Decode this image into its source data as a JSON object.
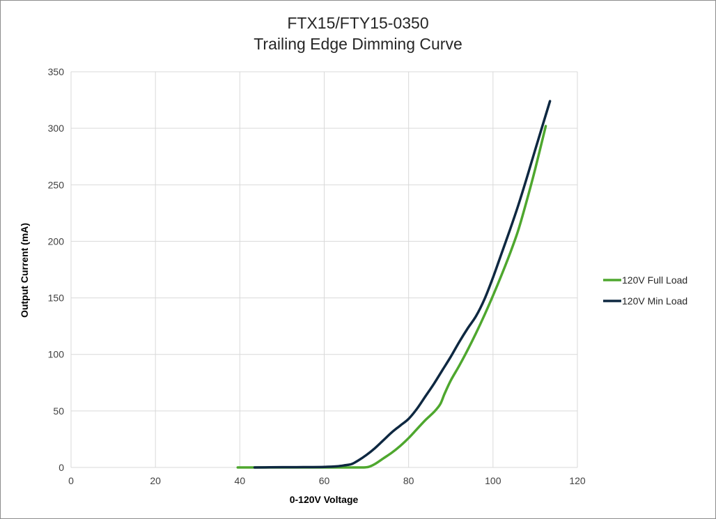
{
  "chart_data": {
    "type": "line",
    "title": "FTX15/FTY15-0350",
    "subtitle": "Trailing Edge Dimming Curve",
    "xlabel": "0-120V Voltage",
    "ylabel": "Output Current (mA)",
    "xlim": [
      0,
      120
    ],
    "ylim": [
      0,
      350
    ],
    "xticks": [
      0,
      20,
      40,
      60,
      80,
      100,
      120
    ],
    "yticks": [
      0,
      50,
      100,
      150,
      200,
      250,
      300,
      350
    ],
    "grid": true,
    "legend_position": "right",
    "series": [
      {
        "name": "120V Full Load",
        "color": "#4ea72e",
        "x": [
          39.5,
          45,
          55,
          62,
          66,
          69,
          70.5,
          72,
          74,
          76,
          78,
          80,
          82,
          84,
          86,
          87.5,
          88.5,
          90,
          92,
          94,
          96,
          98,
          100,
          102,
          104,
          106,
          108,
          110,
          112.5
        ],
        "y": [
          0,
          0,
          0,
          0,
          0,
          0,
          0.5,
          3,
          8,
          13,
          19,
          26,
          34,
          42,
          49,
          56,
          65,
          77,
          90,
          104,
          119,
          135,
          152,
          170,
          189,
          210,
          236,
          264,
          302
        ]
      },
      {
        "name": "120V Min Load",
        "color": "#0e2841",
        "x": [
          43.5,
          50,
          55,
          60,
          63,
          65,
          66.5,
          68,
          70,
          72,
          74,
          76,
          78,
          80,
          82,
          84,
          86,
          88,
          90,
          92,
          94,
          96,
          98,
          100,
          102,
          104,
          106,
          108,
          110,
          113.5
        ],
        "y": [
          0,
          0.2,
          0.3,
          0.5,
          1,
          2,
          3,
          6,
          11,
          17,
          24,
          31,
          37,
          43,
          52,
          63,
          74,
          86,
          98,
          111,
          123,
          134,
          149,
          168,
          189,
          210,
          232,
          256,
          281,
          324
        ]
      }
    ]
  }
}
